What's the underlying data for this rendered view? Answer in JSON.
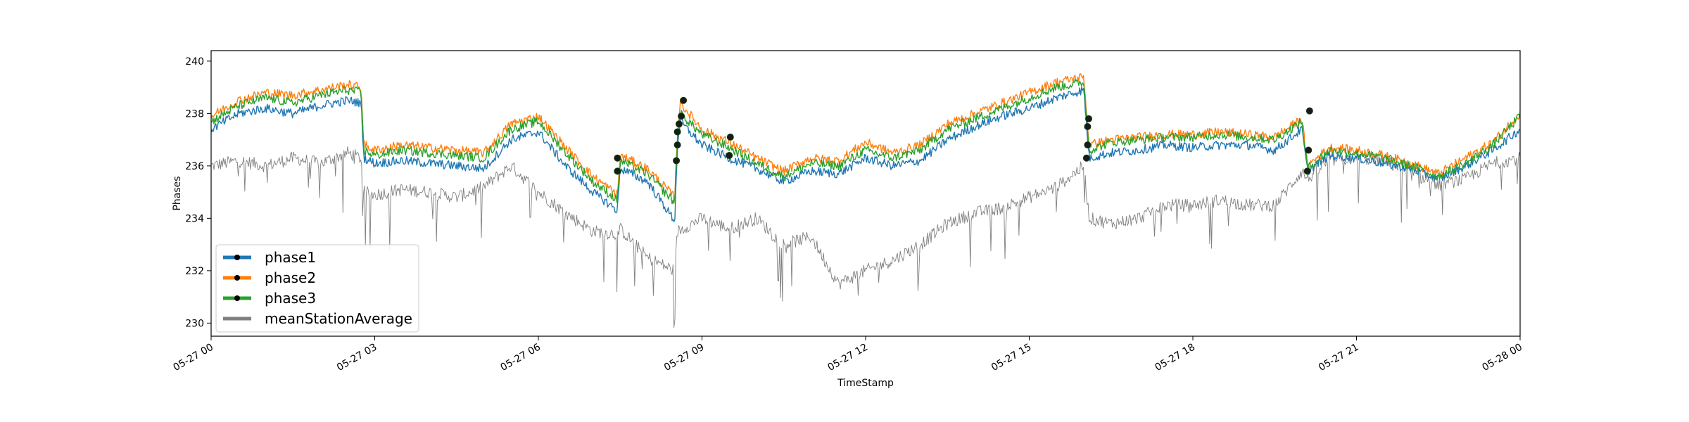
{
  "chart_data": {
    "type": "line",
    "xlabel": "TimeStamp",
    "ylabel": "Phases",
    "xlim": [
      "2023-05-27T00:00",
      "2023-05-28T00:00"
    ],
    "ylim": [
      229.5,
      240.4
    ],
    "x_ticks": [
      {
        "hour": 0,
        "label": "05-27 00"
      },
      {
        "hour": 3,
        "label": "05-27 03"
      },
      {
        "hour": 6,
        "label": "05-27 06"
      },
      {
        "hour": 9,
        "label": "05-27 09"
      },
      {
        "hour": 12,
        "label": "05-27 12"
      },
      {
        "hour": 15,
        "label": "05-27 15"
      },
      {
        "hour": 18,
        "label": "05-27 18"
      },
      {
        "hour": 21,
        "label": "05-27 21"
      },
      {
        "hour": 24,
        "label": "05-28 00"
      }
    ],
    "y_ticks": [
      230,
      232,
      234,
      236,
      238,
      240
    ],
    "grid": false,
    "legend_position": "lower-left",
    "series": [
      {
        "name": "phase1",
        "color": "#1f77b4",
        "noise": 0.35,
        "points": [
          [
            0,
            237.4
          ],
          [
            0.5,
            238.0
          ],
          [
            1,
            238.2
          ],
          [
            1.5,
            238.0
          ],
          [
            2,
            238.3
          ],
          [
            2.5,
            238.5
          ],
          [
            2.75,
            238.4
          ],
          [
            2.8,
            236.3
          ],
          [
            3,
            236.1
          ],
          [
            3.5,
            236.2
          ],
          [
            4,
            236.1
          ],
          [
            4.5,
            236.0
          ],
          [
            5,
            235.9
          ],
          [
            5.5,
            237.0
          ],
          [
            6,
            237.3
          ],
          [
            6.5,
            236.0
          ],
          [
            7,
            235.0
          ],
          [
            7.45,
            234.3
          ],
          [
            7.5,
            235.9
          ],
          [
            8,
            235.4
          ],
          [
            8.5,
            233.9
          ],
          [
            8.55,
            236.8
          ],
          [
            8.6,
            237.7
          ],
          [
            9,
            236.8
          ],
          [
            9.5,
            236.3
          ],
          [
            10,
            235.9
          ],
          [
            10.5,
            235.4
          ],
          [
            11,
            235.8
          ],
          [
            11.5,
            235.7
          ],
          [
            12,
            236.3
          ],
          [
            12.5,
            236.0
          ],
          [
            13,
            236.2
          ],
          [
            13.5,
            237.0
          ],
          [
            14,
            237.5
          ],
          [
            14.5,
            237.9
          ],
          [
            15,
            238.2
          ],
          [
            15.5,
            238.6
          ],
          [
            16,
            238.9
          ],
          [
            16.1,
            236.3
          ],
          [
            16.5,
            236.5
          ],
          [
            17,
            236.6
          ],
          [
            17.5,
            236.8
          ],
          [
            18,
            236.7
          ],
          [
            18.5,
            236.8
          ],
          [
            19,
            236.8
          ],
          [
            19.5,
            236.6
          ],
          [
            20,
            237.4
          ],
          [
            20.1,
            235.8
          ],
          [
            20.5,
            236.4
          ],
          [
            21,
            236.3
          ],
          [
            21.5,
            236.1
          ],
          [
            22,
            235.9
          ],
          [
            22.5,
            235.5
          ],
          [
            23,
            236.0
          ],
          [
            23.5,
            236.6
          ],
          [
            24,
            237.4
          ]
        ]
      },
      {
        "name": "phase2",
        "color": "#ff7f0e",
        "noise": 0.35,
        "points": [
          [
            0,
            237.9
          ],
          [
            0.5,
            238.5
          ],
          [
            1,
            238.8
          ],
          [
            1.5,
            238.7
          ],
          [
            2,
            238.9
          ],
          [
            2.5,
            239.1
          ],
          [
            2.75,
            239.0
          ],
          [
            2.8,
            236.8
          ],
          [
            3,
            236.6
          ],
          [
            3.5,
            236.8
          ],
          [
            4,
            236.7
          ],
          [
            4.5,
            236.6
          ],
          [
            5,
            236.5
          ],
          [
            5.5,
            237.6
          ],
          [
            6,
            237.9
          ],
          [
            6.5,
            236.7
          ],
          [
            7,
            235.6
          ],
          [
            7.45,
            234.9
          ],
          [
            7.5,
            236.4
          ],
          [
            8,
            235.9
          ],
          [
            8.5,
            234.8
          ],
          [
            8.55,
            237.3
          ],
          [
            8.6,
            238.4
          ],
          [
            9,
            237.4
          ],
          [
            9.5,
            236.9
          ],
          [
            10,
            236.3
          ],
          [
            10.5,
            235.8
          ],
          [
            11,
            236.3
          ],
          [
            11.5,
            236.2
          ],
          [
            12,
            236.9
          ],
          [
            12.5,
            236.5
          ],
          [
            13,
            236.8
          ],
          [
            13.5,
            237.6
          ],
          [
            14,
            238.0
          ],
          [
            14.5,
            238.4
          ],
          [
            15,
            238.8
          ],
          [
            15.5,
            239.2
          ],
          [
            16,
            239.4
          ],
          [
            16.1,
            236.8
          ],
          [
            16.5,
            237.0
          ],
          [
            17,
            237.1
          ],
          [
            17.5,
            237.2
          ],
          [
            18,
            237.2
          ],
          [
            18.5,
            237.3
          ],
          [
            19,
            237.2
          ],
          [
            19.5,
            237.1
          ],
          [
            20,
            237.8
          ],
          [
            20.1,
            236.0
          ],
          [
            20.5,
            236.7
          ],
          [
            21,
            236.6
          ],
          [
            21.5,
            236.4
          ],
          [
            22,
            236.1
          ],
          [
            22.5,
            235.7
          ],
          [
            23,
            236.3
          ],
          [
            23.5,
            236.9
          ],
          [
            24,
            238.0
          ]
        ]
      },
      {
        "name": "phase3",
        "color": "#2ca02c",
        "noise": 0.35,
        "points": [
          [
            0,
            237.7
          ],
          [
            0.5,
            238.3
          ],
          [
            1,
            238.6
          ],
          [
            1.5,
            238.4
          ],
          [
            2,
            238.7
          ],
          [
            2.5,
            238.9
          ],
          [
            2.75,
            238.8
          ],
          [
            2.8,
            236.6
          ],
          [
            3,
            236.4
          ],
          [
            3.5,
            236.6
          ],
          [
            4,
            236.5
          ],
          [
            4.5,
            236.4
          ],
          [
            5,
            236.3
          ],
          [
            5.5,
            237.4
          ],
          [
            6,
            237.7
          ],
          [
            6.5,
            236.5
          ],
          [
            7,
            235.4
          ],
          [
            7.45,
            234.7
          ],
          [
            7.5,
            236.2
          ],
          [
            8,
            235.7
          ],
          [
            8.5,
            234.6
          ],
          [
            8.55,
            237.1
          ],
          [
            8.6,
            238.0
          ],
          [
            9,
            237.2
          ],
          [
            9.5,
            236.7
          ],
          [
            10,
            236.1
          ],
          [
            10.5,
            235.6
          ],
          [
            11,
            236.1
          ],
          [
            11.5,
            236.0
          ],
          [
            12,
            236.6
          ],
          [
            12.5,
            236.3
          ],
          [
            13,
            236.6
          ],
          [
            13.5,
            237.4
          ],
          [
            14,
            237.8
          ],
          [
            14.5,
            238.2
          ],
          [
            15,
            238.6
          ],
          [
            15.5,
            239.0
          ],
          [
            16,
            239.2
          ],
          [
            16.1,
            236.6
          ],
          [
            16.5,
            236.9
          ],
          [
            17,
            237.0
          ],
          [
            17.5,
            237.1
          ],
          [
            18,
            237.1
          ],
          [
            18.5,
            237.2
          ],
          [
            19,
            237.1
          ],
          [
            19.5,
            237.0
          ],
          [
            20,
            237.7
          ],
          [
            20.1,
            235.9
          ],
          [
            20.5,
            236.6
          ],
          [
            21,
            236.5
          ],
          [
            21.5,
            236.3
          ],
          [
            22,
            236.0
          ],
          [
            22.5,
            235.6
          ],
          [
            23,
            236.1
          ],
          [
            23.5,
            236.8
          ],
          [
            24,
            237.9
          ]
        ]
      },
      {
        "name": "meanStationAverage",
        "color": "#808080",
        "noise": 0.5,
        "points": [
          [
            0,
            236.0
          ],
          [
            0.5,
            236.2
          ],
          [
            1,
            236.0
          ],
          [
            1.5,
            236.3
          ],
          [
            2,
            236.1
          ],
          [
            2.5,
            236.5
          ],
          [
            2.75,
            236.3
          ],
          [
            2.8,
            235.0
          ],
          [
            3,
            234.9
          ],
          [
            3.5,
            235.1
          ],
          [
            4,
            235.0
          ],
          [
            4.5,
            234.8
          ],
          [
            5,
            235.2
          ],
          [
            5.5,
            236.0
          ],
          [
            6,
            235.0
          ],
          [
            6.5,
            234.2
          ],
          [
            7,
            233.5
          ],
          [
            7.45,
            233.4
          ],
          [
            7.5,
            233.6
          ],
          [
            8,
            232.5
          ],
          [
            8.5,
            232.0
          ],
          [
            8.55,
            233.5
          ],
          [
            9,
            234.0
          ],
          [
            9.5,
            233.6
          ],
          [
            10,
            234.0
          ],
          [
            10.5,
            233.0
          ],
          [
            11,
            233.3
          ],
          [
            11.5,
            231.5
          ],
          [
            12,
            232.0
          ],
          [
            12.5,
            232.4
          ],
          [
            13,
            233.0
          ],
          [
            13.5,
            233.8
          ],
          [
            14,
            234.2
          ],
          [
            14.5,
            234.4
          ],
          [
            15,
            234.8
          ],
          [
            15.5,
            235.2
          ],
          [
            16,
            236.0
          ],
          [
            16.1,
            234.0
          ],
          [
            16.5,
            233.8
          ],
          [
            17,
            234.0
          ],
          [
            17.5,
            234.5
          ],
          [
            18,
            234.5
          ],
          [
            18.5,
            234.7
          ],
          [
            19,
            234.5
          ],
          [
            19.5,
            234.5
          ],
          [
            20,
            235.8
          ],
          [
            20.1,
            235.5
          ],
          [
            20.5,
            236.2
          ],
          [
            21,
            236.3
          ],
          [
            21.5,
            236.2
          ],
          [
            22,
            235.7
          ],
          [
            22.5,
            235.3
          ],
          [
            23,
            235.5
          ],
          [
            23.5,
            236.1
          ],
          [
            24,
            236.3
          ]
        ]
      }
    ],
    "markers": [
      {
        "x": 7.45,
        "y": 235.8
      },
      {
        "x": 7.45,
        "y": 236.3
      },
      {
        "x": 8.53,
        "y": 236.2
      },
      {
        "x": 8.55,
        "y": 236.8
      },
      {
        "x": 8.55,
        "y": 237.3
      },
      {
        "x": 8.58,
        "y": 237.6
      },
      {
        "x": 8.62,
        "y": 237.9
      },
      {
        "x": 8.66,
        "y": 238.5
      },
      {
        "x": 9.5,
        "y": 236.4
      },
      {
        "x": 9.52,
        "y": 237.1
      },
      {
        "x": 16.05,
        "y": 236.3
      },
      {
        "x": 16.07,
        "y": 236.8
      },
      {
        "x": 16.07,
        "y": 237.5
      },
      {
        "x": 16.09,
        "y": 237.8
      },
      {
        "x": 20.1,
        "y": 235.8
      },
      {
        "x": 20.12,
        "y": 236.6
      },
      {
        "x": 20.14,
        "y": 238.1
      }
    ]
  }
}
